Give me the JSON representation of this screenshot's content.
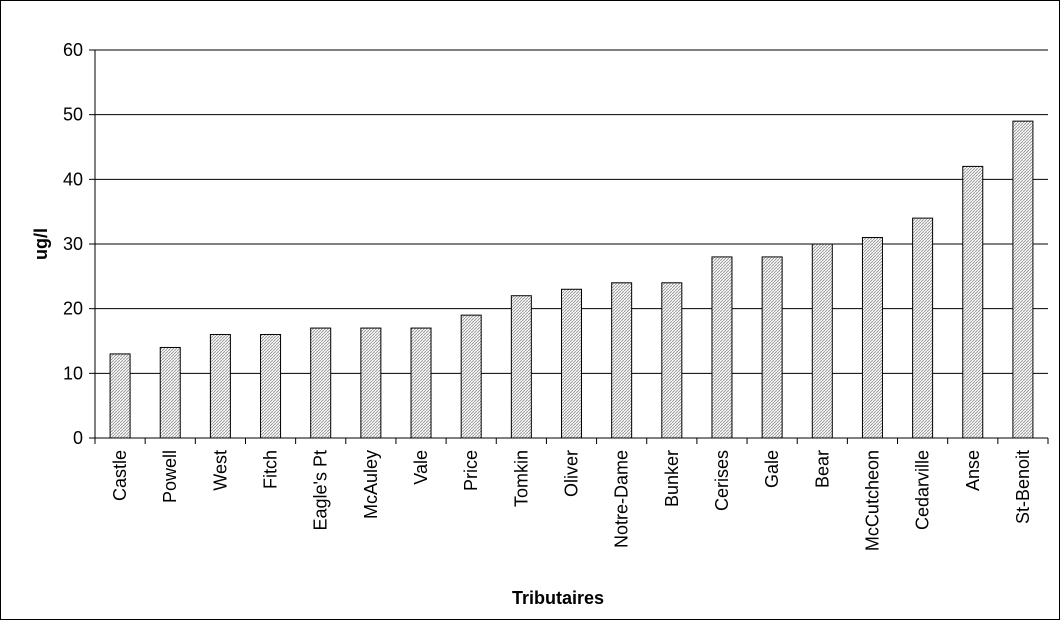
{
  "chart_data": {
    "type": "bar",
    "title": "",
    "xlabel": "Tributaires",
    "ylabel": "ug/l",
    "ylim": [
      0,
      60
    ],
    "yticks": [
      0,
      10,
      20,
      30,
      40,
      50,
      60
    ],
    "grid": true,
    "legend": "none",
    "categories": [
      "Castle",
      "Powell",
      "West",
      "Fitch",
      "Eagle's Pt",
      "McAuley",
      "Vale",
      "Price",
      "Tomkin",
      "Oliver",
      "Notre-Dame",
      "Bunker",
      "Cerises",
      "Gale",
      "Bear",
      "McCutcheon",
      "Cedarville",
      "Anse",
      "St-Benoit"
    ],
    "values": [
      13,
      14,
      16,
      16,
      17,
      17,
      17,
      19,
      22,
      23,
      24,
      24,
      28,
      28,
      30,
      31,
      34,
      42,
      49
    ],
    "colors": {
      "bar_stroke": "#000000",
      "bar_hatch": "#9a9a9a",
      "bar_bg": "#ffffff",
      "grid": "#000000"
    }
  }
}
